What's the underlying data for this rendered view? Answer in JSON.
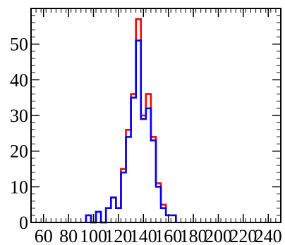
{
  "chart_data": {
    "type": "histogram",
    "title": "",
    "xlabel": "",
    "ylabel": "",
    "xlim": [
      50,
      250
    ],
    "ylim": [
      0,
      60
    ],
    "bin_width": 4,
    "bin_start": 94,
    "x_ticks": [
      60,
      80,
      100,
      120,
      140,
      160,
      180,
      200,
      220,
      240
    ],
    "x_tick_labels": [
      "60",
      "80",
      "100",
      "120",
      "140",
      "160",
      "180",
      "200",
      "220",
      "240"
    ],
    "y_ticks": [
      0,
      10,
      20,
      30,
      40,
      50
    ],
    "y_tick_labels": [
      "0",
      "10",
      "20",
      "30",
      "40",
      "50"
    ],
    "grid": false,
    "series": [
      {
        "color": "#ff0000",
        "values": [
          2,
          0,
          3,
          0,
          4,
          7,
          4,
          15,
          26,
          36,
          57,
          30,
          36,
          24,
          11,
          5,
          2,
          2
        ]
      },
      {
        "color": "#0000ff",
        "values": [
          2,
          0,
          3,
          0,
          4,
          7,
          4,
          14,
          24,
          35,
          51,
          29,
          32,
          23,
          10,
          4,
          2,
          2
        ]
      }
    ]
  }
}
